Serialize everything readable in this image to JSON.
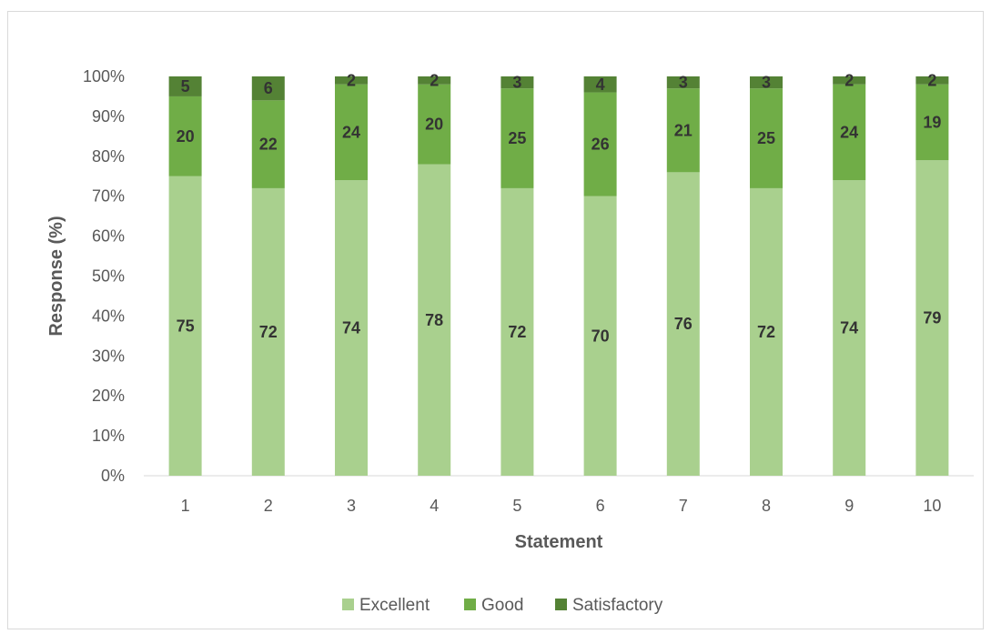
{
  "chart_data": {
    "type": "bar",
    "stacked": true,
    "percent_stacked": true,
    "categories": [
      "1",
      "2",
      "3",
      "4",
      "5",
      "6",
      "7",
      "8",
      "9",
      "10"
    ],
    "series": [
      {
        "name": "Excellent",
        "color": "#a9d08e",
        "values": [
          75,
          72,
          74,
          78,
          72,
          70,
          76,
          72,
          74,
          79
        ]
      },
      {
        "name": "Good",
        "color": "#70ad47",
        "values": [
          20,
          22,
          24,
          20,
          25,
          26,
          21,
          25,
          24,
          19
        ]
      },
      {
        "name": "Satisfactory",
        "color": "#548235",
        "values": [
          5,
          6,
          2,
          2,
          3,
          4,
          3,
          3,
          2,
          2
        ]
      }
    ],
    "xlabel": "Statement",
    "ylabel": "Response (%)",
    "ylim": [
      0,
      100
    ],
    "yticks": [
      "0%",
      "10%",
      "20%",
      "30%",
      "40%",
      "50%",
      "60%",
      "70%",
      "80%",
      "90%",
      "100%"
    ],
    "grid": false,
    "legend_position": "bottom"
  }
}
